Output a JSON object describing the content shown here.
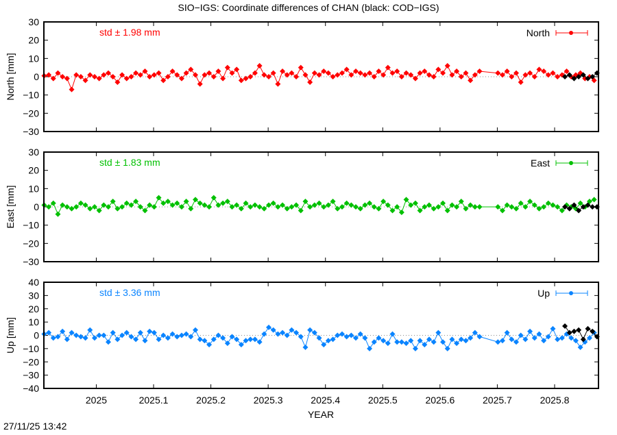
{
  "title": "SIO−IGS: Coordinate differences of CHAN (black: COD−IGS)",
  "timestamp": "27/11/25 13:42",
  "chart_data": {
    "type": "line",
    "xlabel": "YEAR",
    "xlim": [
      2024.9085,
      2025.8766
    ],
    "xticks": [
      2025,
      2025.1,
      2025.2,
      2025.3,
      2025.4,
      2025.5,
      2025.6,
      2025.7,
      2025.8
    ],
    "xtick_labels": [
      "2025",
      "2025.1",
      "2025.2",
      "2025.3",
      "2025.4",
      "2025.5",
      "2025.6",
      "2025.7",
      "2025.8"
    ],
    "grid": false,
    "x": [
      2024.909,
      2024.917,
      2024.925,
      2024.933,
      2024.941,
      2024.949,
      2024.957,
      2024.965,
      2024.973,
      2024.981,
      2024.989,
      2024.997,
      2025.005,
      2025.013,
      2025.021,
      2025.029,
      2025.037,
      2025.045,
      2025.053,
      2025.061,
      2025.069,
      2025.077,
      2025.085,
      2025.093,
      2025.101,
      2025.109,
      2025.117,
      2025.125,
      2025.133,
      2025.141,
      2025.149,
      2025.157,
      2025.165,
      2025.173,
      2025.181,
      2025.189,
      2025.197,
      2025.205,
      2025.213,
      2025.221,
      2025.229,
      2025.237,
      2025.245,
      2025.253,
      2025.261,
      2025.269,
      2025.277,
      2025.285,
      2025.293,
      2025.301,
      2025.309,
      2025.317,
      2025.325,
      2025.333,
      2025.341,
      2025.349,
      2025.357,
      2025.365,
      2025.373,
      2025.381,
      2025.389,
      2025.397,
      2025.405,
      2025.413,
      2025.421,
      2025.429,
      2025.437,
      2025.445,
      2025.453,
      2025.461,
      2025.469,
      2025.477,
      2025.485,
      2025.493,
      2025.501,
      2025.509,
      2025.517,
      2025.525,
      2025.533,
      2025.541,
      2025.549,
      2025.557,
      2025.565,
      2025.573,
      2025.581,
      2025.589,
      2025.597,
      2025.605,
      2025.613,
      2025.621,
      2025.629,
      2025.637,
      2025.645,
      2025.653,
      2025.661,
      2025.669,
      2025.701,
      2025.709,
      2025.717,
      2025.725,
      2025.733,
      2025.741,
      2025.749,
      2025.757,
      2025.765,
      2025.773,
      2025.781,
      2025.789,
      2025.797,
      2025.805,
      2025.813,
      2025.821,
      2025.829,
      2025.837,
      2025.845,
      2025.853,
      2025.861,
      2025.869
    ],
    "x_cod": [
      2025.818,
      2025.826,
      2025.834,
      2025.842,
      2025.85,
      2025.858,
      2025.866,
      2025.874
    ],
    "panels": [
      {
        "ylabel": "North [mm]",
        "ylim": [
          -30,
          30
        ],
        "yticks": [
          30,
          20,
          10,
          0,
          -10,
          -20,
          -30
        ],
        "legend": "North",
        "std_label": "std ± 1.98 mm",
        "color": "#ff0000",
        "values": [
          0.5,
          1,
          -1,
          2,
          0,
          -1,
          -7,
          1,
          0,
          -2,
          1,
          0,
          -1,
          1,
          2,
          0,
          -3,
          1,
          -1,
          0,
          2,
          1,
          3,
          0,
          1,
          2,
          -2,
          0,
          3,
          1,
          -1,
          2,
          4,
          1,
          -4,
          1,
          2,
          0,
          3,
          -1,
          5,
          2,
          4,
          -2,
          -1,
          0,
          2,
          6,
          1,
          0,
          2,
          -4,
          3,
          1,
          2,
          0,
          5,
          1,
          -3,
          2,
          1,
          3,
          2,
          0,
          1,
          2,
          4,
          1,
          3,
          2,
          1,
          2,
          0,
          3,
          1,
          5,
          2,
          3,
          0,
          2,
          1,
          -1,
          2,
          3,
          1,
          0,
          4,
          2,
          6,
          1,
          3,
          0,
          2,
          -2,
          1,
          3,
          2,
          1,
          3,
          0,
          2,
          -3,
          1,
          2,
          0,
          4,
          3,
          1,
          2,
          0,
          1,
          3,
          0,
          1,
          2,
          -1,
          0,
          -2
        ],
        "cod_values": [
          0,
          1,
          -1,
          0,
          1,
          -1,
          0,
          2
        ]
      },
      {
        "ylabel": "East [mm]",
        "ylim": [
          -30,
          30
        ],
        "yticks": [
          30,
          20,
          10,
          0,
          -10,
          -20,
          -30
        ],
        "legend": "East",
        "std_label": "std ± 1.83 mm",
        "color": "#00c000",
        "values": [
          1,
          0,
          2,
          -4,
          1,
          0,
          -1,
          0,
          2,
          1,
          -1,
          0,
          -2,
          1,
          0,
          3,
          -1,
          0,
          2,
          1,
          3,
          0,
          -2,
          1,
          0,
          5,
          2,
          3,
          1,
          2,
          0,
          3,
          -1,
          4,
          2,
          1,
          0,
          5,
          1,
          2,
          3,
          0,
          1,
          -1,
          2,
          0,
          1,
          0,
          -1,
          1,
          2,
          0,
          1,
          -1,
          0,
          1,
          -2,
          3,
          0,
          1,
          2,
          0,
          1,
          3,
          -1,
          0,
          2,
          1,
          0,
          -1,
          1,
          2,
          0,
          -1,
          3,
          1,
          -2,
          0,
          -3,
          4,
          1,
          2,
          -2,
          0,
          1,
          -1,
          0,
          2,
          -2,
          1,
          0,
          3,
          -1,
          1,
          0,
          0,
          0,
          -2,
          1,
          0,
          -1,
          2,
          0,
          3,
          1,
          -1,
          0,
          2,
          1,
          0,
          -2,
          1,
          0,
          -1,
          2,
          0,
          3,
          4
        ],
        "cod_values": [
          0,
          -1,
          1,
          -2,
          0,
          1,
          0,
          0
        ]
      },
      {
        "ylabel": "Up [mm]",
        "ylim": [
          -40,
          40
        ],
        "yticks": [
          40,
          30,
          20,
          10,
          0,
          -10,
          -20,
          -30,
          -40
        ],
        "legend": "Up",
        "std_label": "std ± 3.36 mm",
        "color": "#0a84ff",
        "values": [
          1,
          2,
          -2,
          -1,
          3,
          -3,
          2,
          0,
          -1,
          -2,
          4,
          -2,
          0,
          0,
          -5,
          2,
          -3,
          0,
          2,
          -1,
          -3,
          2,
          -4,
          3,
          2,
          -3,
          0,
          -2,
          1,
          -1,
          0,
          1,
          -1,
          4,
          -3,
          -4,
          -7,
          -3,
          0,
          -2,
          -6,
          -1,
          -3,
          -7,
          -4,
          -3,
          -3,
          -5,
          1,
          6,
          4,
          1,
          2,
          0,
          4,
          2,
          -1,
          -9,
          4,
          2,
          -2,
          -7,
          -4,
          -3,
          0,
          1,
          -1,
          0,
          -2,
          1,
          -2,
          -10,
          -5,
          -2,
          -4,
          -6,
          1,
          -5,
          -5,
          -6,
          -4,
          -10,
          -4,
          -7,
          -3,
          -5,
          2,
          -5,
          -10,
          -3,
          -6,
          -3,
          -4,
          -2,
          2,
          -1,
          -5,
          -4,
          2,
          -3,
          -5,
          0,
          -3,
          3,
          -2,
          1,
          -4,
          -1,
          5,
          -3,
          -2,
          1,
          -2,
          -4,
          -9,
          -5,
          -2,
          2
        ],
        "cod_values": [
          7,
          2,
          3,
          4,
          -3,
          5,
          3,
          -1
        ]
      }
    ],
    "cod_color": "#000000"
  }
}
